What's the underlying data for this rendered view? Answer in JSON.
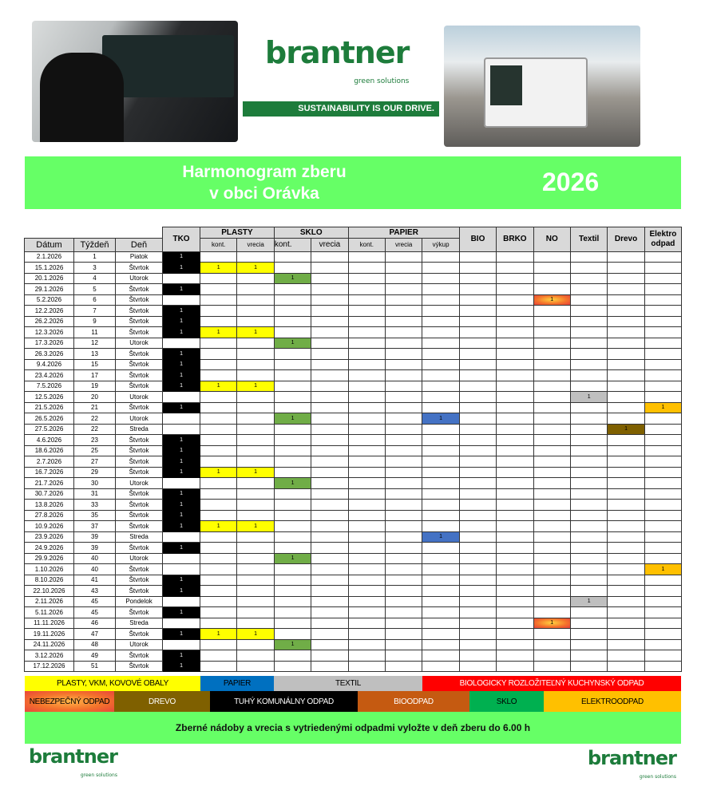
{
  "header": {
    "logo_text": "brantner",
    "logo_sub": "green solutions",
    "slogan": "SUSTAINABILITY IS OUR DRIVE.",
    "title_line1": "Harmonogram zberu",
    "title_line2": "v obci Orávka",
    "year": "2026"
  },
  "table": {
    "headers": {
      "datum": "Dátum",
      "tyzden": "Týždeň",
      "den": "Deň",
      "tko": "TKO",
      "plasty": "PLASTY",
      "sklo": "SKLO",
      "papier": "PAPIER",
      "bio": "BIO",
      "brko": "BRKO",
      "no": "NO",
      "textil": "Textil",
      "drevo": "Drevo",
      "elektro_1": "Elektro",
      "elektro_2": "odpad",
      "kont": "kont.",
      "vrecia": "vrecia",
      "vykup": "výkup"
    },
    "columns": [
      "tko",
      "plasty_kont",
      "plasty_vrecia",
      "sklo_kont",
      "sklo_vrecia",
      "papier_kont",
      "papier_vrecia",
      "papier_vykup",
      "bio",
      "brko",
      "no",
      "textil",
      "drevo",
      "elektro"
    ],
    "mark_value": "1",
    "rows": [
      {
        "date": "2.1.2026",
        "week": "1",
        "day": "Piatok",
        "marks": [
          "tko"
        ]
      },
      {
        "date": "15.1.2026",
        "week": "3",
        "day": "Štvrtok",
        "marks": [
          "tko",
          "plasty_kont",
          "plasty_vrecia"
        ]
      },
      {
        "date": "20.1.2026",
        "week": "4",
        "day": "Utorok",
        "marks": [
          "sklo_kont"
        ]
      },
      {
        "date": "29.1.2026",
        "week": "5",
        "day": "Štvrtok",
        "marks": [
          "tko"
        ]
      },
      {
        "date": "5.2.2026",
        "week": "6",
        "day": "Štvrtok",
        "marks": [
          "no"
        ]
      },
      {
        "date": "12.2.2026",
        "week": "7",
        "day": "Štvrtok",
        "marks": [
          "tko"
        ]
      },
      {
        "date": "26.2.2026",
        "week": "9",
        "day": "Štvrtok",
        "marks": [
          "tko"
        ]
      },
      {
        "date": "12.3.2026",
        "week": "11",
        "day": "Štvrtok",
        "marks": [
          "tko",
          "plasty_kont",
          "plasty_vrecia"
        ]
      },
      {
        "date": "17.3.2026",
        "week": "12",
        "day": "Utorok",
        "marks": [
          "sklo_kont"
        ]
      },
      {
        "date": "26.3.2026",
        "week": "13",
        "day": "Štvrtok",
        "marks": [
          "tko"
        ]
      },
      {
        "date": "9.4.2026",
        "week": "15",
        "day": "Štvrtok",
        "marks": [
          "tko"
        ]
      },
      {
        "date": "23.4.2026",
        "week": "17",
        "day": "Štvrtok",
        "marks": [
          "tko"
        ]
      },
      {
        "date": "7.5.2026",
        "week": "19",
        "day": "Štvrtok",
        "marks": [
          "tko",
          "plasty_kont",
          "plasty_vrecia"
        ]
      },
      {
        "date": "12.5.2026",
        "week": "20",
        "day": "Utorok",
        "marks": [
          "textil"
        ]
      },
      {
        "date": "21.5.2026",
        "week": "21",
        "day": "Štvrtok",
        "marks": [
          "tko",
          "elektro"
        ]
      },
      {
        "date": "26.5.2026",
        "week": "22",
        "day": "Utorok",
        "marks": [
          "sklo_kont",
          "papier_vykup"
        ]
      },
      {
        "date": "27.5.2026",
        "week": "22",
        "day": "Streda",
        "marks": [
          "drevo"
        ]
      },
      {
        "date": "4.6.2026",
        "week": "23",
        "day": "Štvrtok",
        "marks": [
          "tko"
        ]
      },
      {
        "date": "18.6.2026",
        "week": "25",
        "day": "Štvrtok",
        "marks": [
          "tko"
        ]
      },
      {
        "date": "2.7.2026",
        "week": "27",
        "day": "Štvrtok",
        "marks": [
          "tko"
        ]
      },
      {
        "date": "16.7.2026",
        "week": "29",
        "day": "Štvrtok",
        "marks": [
          "tko",
          "plasty_kont",
          "plasty_vrecia"
        ]
      },
      {
        "date": "21.7.2026",
        "week": "30",
        "day": "Utorok",
        "marks": [
          "sklo_kont"
        ]
      },
      {
        "date": "30.7.2026",
        "week": "31",
        "day": "Štvrtok",
        "marks": [
          "tko"
        ]
      },
      {
        "date": "13.8.2026",
        "week": "33",
        "day": "Štvrtok",
        "marks": [
          "tko"
        ]
      },
      {
        "date": "27.8.2026",
        "week": "35",
        "day": "Štvrtok",
        "marks": [
          "tko"
        ]
      },
      {
        "date": "10.9.2026",
        "week": "37",
        "day": "Štvrtok",
        "marks": [
          "tko",
          "plasty_kont",
          "plasty_vrecia"
        ]
      },
      {
        "date": "23.9.2026",
        "week": "39",
        "day": "Streda",
        "marks": [
          "papier_vykup"
        ]
      },
      {
        "date": "24.9.2026",
        "week": "39",
        "day": "Štvrtok",
        "marks": [
          "tko"
        ]
      },
      {
        "date": "29.9.2026",
        "week": "40",
        "day": "Utorok",
        "marks": [
          "sklo_kont"
        ]
      },
      {
        "date": "1.10.2026",
        "week": "40",
        "day": "Štvrtok",
        "marks": [
          "elektro"
        ]
      },
      {
        "date": "8.10.2026",
        "week": "41",
        "day": "Štvrtok",
        "marks": [
          "tko"
        ]
      },
      {
        "date": "22.10.2026",
        "week": "43",
        "day": "Štvrtok",
        "marks": [
          "tko"
        ]
      },
      {
        "date": "2.11.2026",
        "week": "45",
        "day": "Pondelok",
        "marks": [
          "textil"
        ]
      },
      {
        "date": "5.11.2026",
        "week": "45",
        "day": "Štvrtok",
        "marks": [
          "tko"
        ]
      },
      {
        "date": "11.11.2026",
        "week": "46",
        "day": "Streda",
        "marks": [
          "no"
        ]
      },
      {
        "date": "19.11.2026",
        "week": "47",
        "day": "Štvrtok",
        "marks": [
          "tko",
          "plasty_kont",
          "plasty_vrecia"
        ]
      },
      {
        "date": "24.11.2026",
        "week": "48",
        "day": "Utorok",
        "marks": [
          "sklo_kont"
        ]
      },
      {
        "date": "3.12.2026",
        "week": "49",
        "day": "Štvrtok",
        "marks": [
          "tko"
        ]
      },
      {
        "date": "17.12.2026",
        "week": "51",
        "day": "Štvrtok",
        "marks": [
          "tko"
        ]
      }
    ]
  },
  "colors": {
    "tko": "#000000",
    "plasty_kont": "#ffff00",
    "plasty_vrecia": "#ffff00",
    "sklo_kont": "#70ad47",
    "papier_vykup": "#4472c4",
    "no": "#f4722b",
    "textil": "#bfbfbf",
    "drevo": "#7f6000",
    "elektro": "#ffc000",
    "title_band": "#66ff66",
    "brand": "#1d7c3b"
  },
  "legend": {
    "row1": [
      {
        "label": "PLASTY, VKM, KOVOVÉ OBALY",
        "bg": "#ffff00",
        "fg": "#000000"
      },
      {
        "label": "PAPIER",
        "bg": "#0070c0",
        "fg": "#000000"
      },
      {
        "label": "TEXTIL",
        "bg": "#bfbfbf",
        "fg": "#000000"
      },
      {
        "label": "BIOLOGICKY ROZLOŽITEĽNÝ KUCHYNSKÝ ODPAD",
        "bg": "#ff0000",
        "fg": "#ffffff"
      }
    ],
    "row2": [
      {
        "label": "NEBEZPEČNÝ ODPAD",
        "bg": "#f4722b",
        "fg": "#000000"
      },
      {
        "label": "DREVO",
        "bg": "#7f6000",
        "fg": "#ffffff"
      },
      {
        "label": "TUHÝ KOMUNÁLNY ODPAD",
        "bg": "#000000",
        "fg": "#ffffff"
      },
      {
        "label": "BIOODPAD",
        "bg": "#c55a11",
        "fg": "#ffffff"
      },
      {
        "label": "SKLO",
        "bg": "#00b050",
        "fg": "#000000"
      },
      {
        "label": "ELEKTROODPAD",
        "bg": "#ffc000",
        "fg": "#000000"
      }
    ]
  },
  "notice": "Zberné nádoby a vrecia s vytriedenými odpadmi vyložte v deň zberu do 6.00 h"
}
